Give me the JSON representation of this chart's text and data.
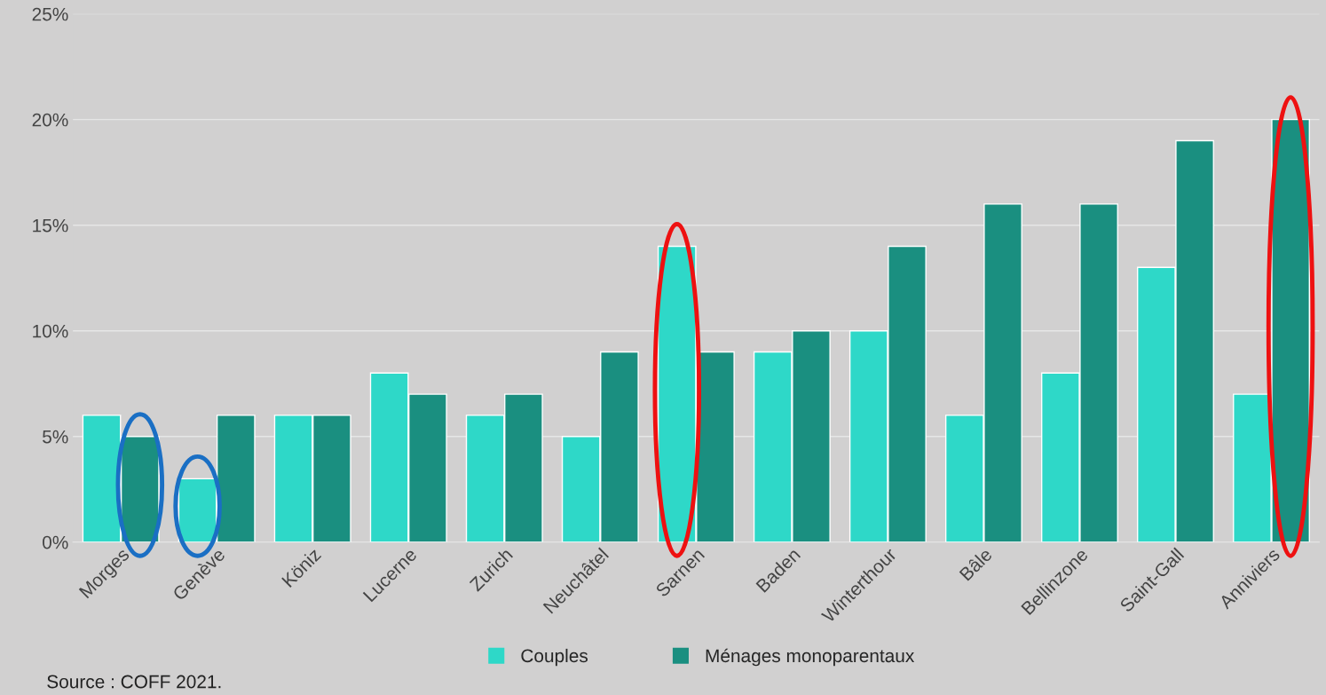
{
  "chart_data": {
    "type": "bar",
    "categories": [
      "Morges",
      "Genève",
      "Köniz",
      "Lucerne",
      "Zurich",
      "Neuchâtel",
      "Sarnen",
      "Baden",
      "Winterthour",
      "Bâle",
      "Bellinzone",
      "Saint-Gall",
      "Anniviers"
    ],
    "series": [
      {
        "name": "Couples",
        "color": "#2ed8c8",
        "values": [
          6,
          3,
          6,
          8,
          6,
          5,
          14,
          9,
          10,
          6,
          8,
          13,
          7
        ]
      },
      {
        "name": "Ménages monoparentaux",
        "color": "#1a8f80",
        "values": [
          5,
          6,
          6,
          7,
          7,
          9,
          9,
          10,
          14,
          16,
          16,
          19,
          20
        ]
      }
    ],
    "ylim": [
      0,
      25
    ],
    "yticks": [
      {
        "value": 0,
        "label": "0%"
      },
      {
        "value": 5,
        "label": "5%"
      },
      {
        "value": 10,
        "label": "10%"
      },
      {
        "value": 15,
        "label": "15%"
      },
      {
        "value": 20,
        "label": "20%"
      },
      {
        "value": 25,
        "label": "25%"
      }
    ],
    "grid": "y",
    "legend": "bottom",
    "annotations": [
      "Source : COFF 2021."
    ]
  }
}
